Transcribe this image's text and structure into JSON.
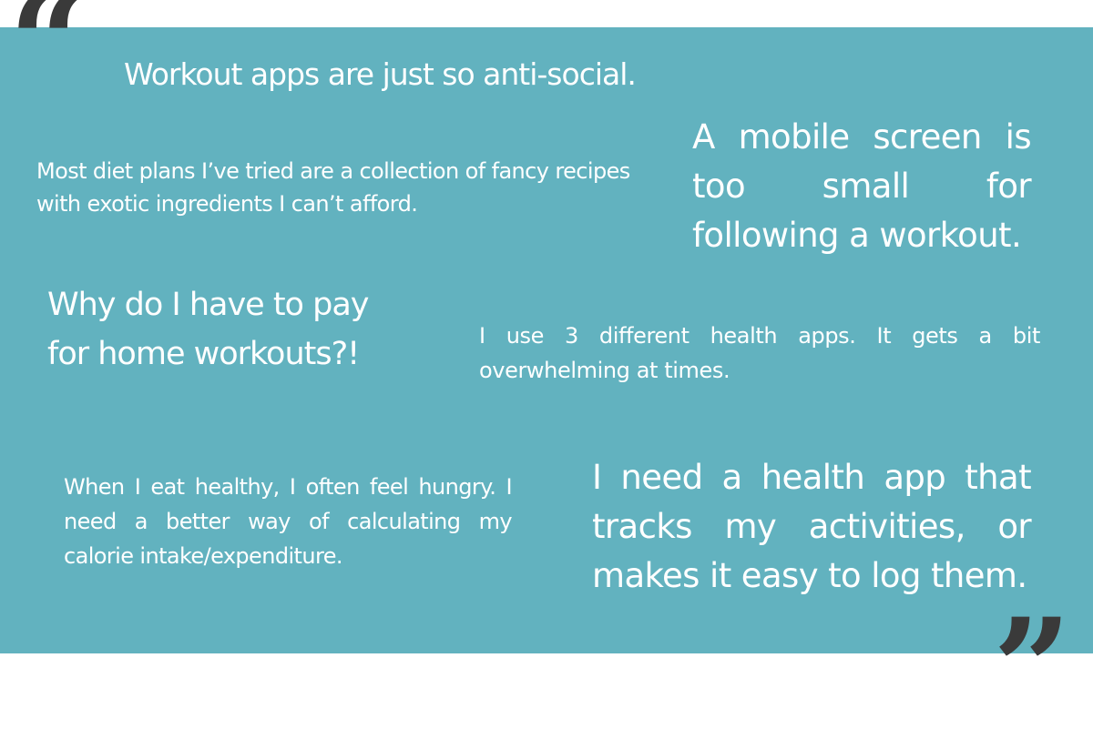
{
  "quote_marks": {
    "open": "“",
    "close": "”"
  },
  "quotes": [
    "Workout apps are just so anti-social.",
    "Most diet plans I’ve tried are a collection of fancy recipes with exotic ingredients I can’t afford.",
    "A mobile screen is too small for following a workout.",
    "Why do I have to pay for home workouts?!",
    "I use 3 different health apps. It gets a bit overwhelming at times.",
    "When I eat healthy, I often feel hungry. I need a better way of calculating my calorie intake/expenditure.",
    "I need a health app that tracks my activities, or makes it easy to log them."
  ],
  "colors": {
    "panel": "#62b2bf",
    "text": "#ffffff",
    "quote_mark": "#3a3a3a"
  }
}
